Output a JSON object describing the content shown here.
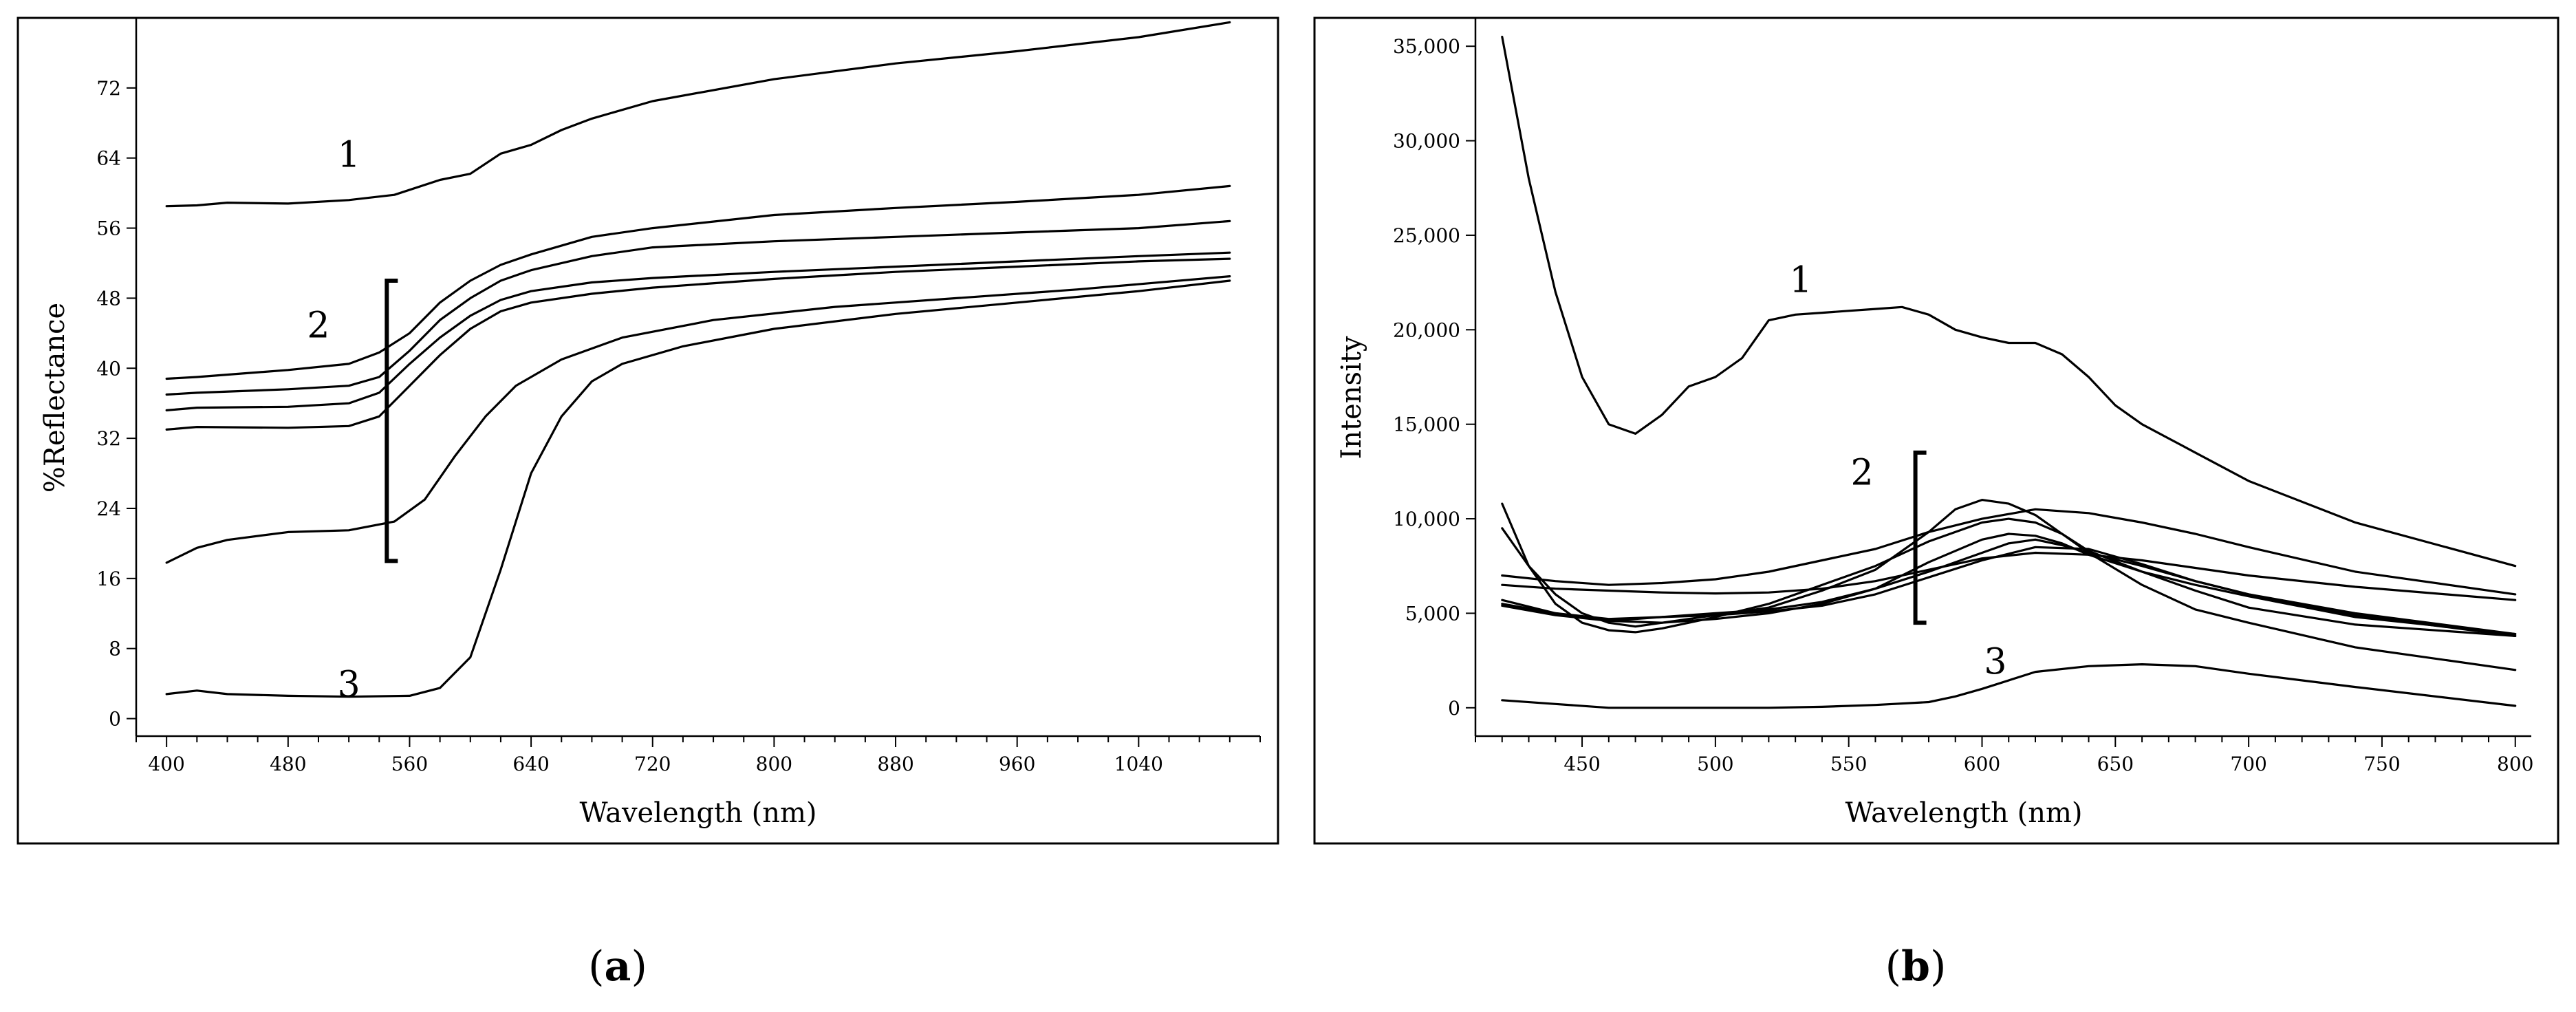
{
  "panels": {
    "a": {
      "label_paren_open": "(",
      "label_letter": "a",
      "label_paren_close": ")"
    },
    "b": {
      "label_paren_open": "(",
      "label_letter": "b",
      "label_paren_close": ")"
    }
  },
  "chart_data": [
    {
      "type": "line",
      "panel": "a",
      "xlabel": "Wavelength (nm)",
      "ylabel": "%Reflectance",
      "xlim": [
        380,
        1120
      ],
      "ylim": [
        -2,
        80
      ],
      "xticks": [
        400,
        480,
        560,
        640,
        720,
        800,
        880,
        960,
        1040
      ],
      "yticks": [
        0,
        8,
        16,
        24,
        32,
        40,
        48,
        56,
        64,
        72
      ],
      "ytick_labels": [
        "0",
        "8",
        "16",
        "24",
        "32",
        "40",
        "48",
        "56",
        "64",
        "72"
      ],
      "grid": false,
      "annotations": [
        {
          "text": "1",
          "x": 520,
          "y": 63
        },
        {
          "text": "2",
          "x": 500,
          "y": 43.5
        },
        {
          "text": "3",
          "x": 520,
          "y": 2.5
        }
      ],
      "bracket": {
        "x": 545,
        "y_low": 18,
        "y_high": 50
      },
      "series": [
        {
          "x": [
            400,
            420,
            440,
            480,
            520,
            550,
            580,
            600,
            620,
            640,
            660,
            680,
            720,
            800,
            880,
            960,
            1040,
            1100
          ],
          "y": [
            58.5,
            58.6,
            58.9,
            58.8,
            59.2,
            59.8,
            61.5,
            62.2,
            64.5,
            65.5,
            67.2,
            68.5,
            70.5,
            73,
            74.8,
            76.2,
            77.8,
            79.5
          ]
        },
        {
          "x": [
            400,
            420,
            480,
            520,
            540,
            560,
            580,
            600,
            620,
            640,
            680,
            720,
            800,
            880,
            960,
            1040,
            1100
          ],
          "y": [
            38.8,
            39.0,
            39.8,
            40.5,
            41.8,
            44,
            47.5,
            50,
            51.8,
            53,
            55,
            56,
            57.5,
            58.3,
            59,
            59.8,
            60.8
          ]
        },
        {
          "x": [
            400,
            420,
            480,
            520,
            540,
            560,
            580,
            600,
            620,
            640,
            680,
            720,
            800,
            880,
            960,
            1040,
            1100
          ],
          "y": [
            37.0,
            37.2,
            37.6,
            38.0,
            39,
            42,
            45.5,
            48,
            50,
            51.2,
            52.8,
            53.8,
            54.5,
            55,
            55.5,
            56,
            56.8
          ]
        },
        {
          "x": [
            400,
            420,
            480,
            520,
            540,
            560,
            580,
            600,
            620,
            640,
            680,
            720,
            800,
            880,
            960,
            1040,
            1100
          ],
          "y": [
            35.2,
            35.5,
            35.6,
            36.0,
            37.2,
            40.5,
            43.5,
            46,
            47.8,
            48.8,
            49.8,
            50.3,
            51,
            51.6,
            52.2,
            52.8,
            53.2
          ]
        },
        {
          "x": [
            400,
            420,
            480,
            520,
            540,
            560,
            580,
            600,
            620,
            640,
            680,
            720,
            800,
            880,
            960,
            1040,
            1100
          ],
          "y": [
            33.0,
            33.3,
            33.2,
            33.4,
            34.5,
            38,
            41.5,
            44.5,
            46.5,
            47.5,
            48.5,
            49.2,
            50.2,
            51,
            51.6,
            52.2,
            52.5
          ]
        },
        {
          "x": [
            400,
            420,
            440,
            480,
            520,
            550,
            570,
            590,
            610,
            630,
            660,
            700,
            760,
            840,
            920,
            1000,
            1100
          ],
          "y": [
            17.8,
            19.5,
            20.4,
            21.3,
            21.5,
            22.5,
            25,
            30,
            34.5,
            38,
            41,
            43.5,
            45.5,
            47,
            48,
            49,
            50.5
          ]
        },
        {
          "x": [
            400,
            420,
            440,
            480,
            520,
            560,
            580,
            600,
            620,
            640,
            660,
            680,
            700,
            740,
            800,
            880,
            960,
            1040,
            1100
          ],
          "y": [
            2.8,
            3.2,
            2.8,
            2.6,
            2.5,
            2.6,
            3.5,
            7,
            17,
            28,
            34.5,
            38.5,
            40.5,
            42.5,
            44.5,
            46.2,
            47.5,
            48.8,
            50
          ]
        }
      ]
    },
    {
      "type": "line",
      "panel": "b",
      "xlabel": "Wavelength (nm)",
      "ylabel": "Intensity",
      "xlim": [
        410,
        806
      ],
      "ylim": [
        -1500,
        36500
      ],
      "xticks": [
        450,
        500,
        550,
        600,
        650,
        700,
        750,
        800
      ],
      "yticks": [
        0,
        5000,
        10000,
        15000,
        20000,
        25000,
        30000,
        35000
      ],
      "ytick_labels": [
        "0",
        "5,000",
        "10,000",
        "15,000",
        "20,000",
        "25,000",
        "30,000",
        "35,000"
      ],
      "grid": false,
      "annotations": [
        {
          "text": "1",
          "x": 532,
          "y": 22000
        },
        {
          "text": "2",
          "x": 555,
          "y": 11800
        },
        {
          "text": "3",
          "x": 605,
          "y": 1800
        }
      ],
      "bracket": {
        "x": 575,
        "y_low": 4500,
        "y_high": 13500
      },
      "series": [
        {
          "x": [
            420,
            430,
            440,
            450,
            460,
            470,
            480,
            490,
            500,
            510,
            520,
            530,
            540,
            550,
            560,
            570,
            580,
            590,
            600,
            610,
            620,
            630,
            640,
            650,
            660,
            680,
            700,
            740,
            800
          ],
          "y": [
            35500,
            28000,
            22000,
            17500,
            15000,
            14500,
            15500,
            17000,
            17500,
            18500,
            20500,
            20800,
            20900,
            21000,
            21100,
            21200,
            20800,
            20000,
            19600,
            19300,
            19300,
            18700,
            17500,
            16000,
            15000,
            13500,
            12000,
            9800,
            7500
          ]
        },
        {
          "x": [
            420,
            440,
            460,
            480,
            500,
            520,
            540,
            560,
            580,
            600,
            620,
            640,
            660,
            680,
            700,
            740,
            800
          ],
          "y": [
            7000,
            6700,
            6500,
            6600,
            6800,
            7200,
            7800,
            8400,
            9300,
            10000,
            10500,
            10300,
            9800,
            9200,
            8500,
            7200,
            6000
          ]
        },
        {
          "x": [
            420,
            440,
            460,
            480,
            500,
            520,
            540,
            560,
            580,
            600,
            620,
            640,
            660,
            680,
            700,
            740,
            800
          ],
          "y": [
            6500,
            6300,
            6200,
            6100,
            6050,
            6100,
            6300,
            6700,
            7300,
            7900,
            8200,
            8100,
            7800,
            7400,
            7000,
            6400,
            5700
          ]
        },
        {
          "x": [
            420,
            430,
            440,
            450,
            460,
            470,
            480,
            500,
            520,
            540,
            560,
            580,
            590,
            600,
            610,
            620,
            630,
            640,
            660,
            680,
            700,
            740,
            800
          ],
          "y": [
            9500,
            7500,
            6000,
            5000,
            4500,
            4300,
            4500,
            4900,
            5300,
            6200,
            7300,
            9300,
            10500,
            11000,
            10800,
            10200,
            9200,
            8200,
            6500,
            5200,
            4500,
            3200,
            2000
          ]
        },
        {
          "x": [
            420,
            430,
            440,
            450,
            460,
            470,
            480,
            500,
            520,
            540,
            560,
            580,
            600,
            610,
            620,
            630,
            640,
            660,
            680,
            700,
            740,
            800
          ],
          "y": [
            10800,
            7500,
            5500,
            4500,
            4100,
            4000,
            4200,
            4800,
            5500,
            6500,
            7500,
            8800,
            9800,
            10000,
            9800,
            9200,
            8300,
            7200,
            6200,
            5300,
            4400,
            3800
          ]
        },
        {
          "x": [
            420,
            440,
            460,
            480,
            500,
            520,
            540,
            560,
            580,
            600,
            610,
            620,
            630,
            640,
            660,
            680,
            700,
            740,
            800
          ],
          "y": [
            5700,
            5000,
            4600,
            4500,
            4700,
            5000,
            5500,
            6300,
            7700,
            8900,
            9200,
            9100,
            8700,
            8100,
            7200,
            6500,
            5900,
            4800,
            3900
          ]
        },
        {
          "x": [
            420,
            440,
            460,
            480,
            500,
            520,
            540,
            560,
            580,
            600,
            610,
            620,
            630,
            640,
            660,
            680,
            700,
            740,
            800
          ],
          "y": [
            5500,
            5000,
            4700,
            4800,
            5000,
            5200,
            5600,
            6300,
            7200,
            8200,
            8700,
            8900,
            8600,
            8200,
            7500,
            6700,
            6000,
            5000,
            3900
          ]
        },
        {
          "x": [
            420,
            440,
            460,
            480,
            500,
            520,
            540,
            560,
            580,
            600,
            620,
            640,
            660,
            680,
            700,
            740,
            800
          ],
          "y": [
            5400,
            4900,
            4600,
            4800,
            4900,
            5100,
            5400,
            6000,
            6900,
            7800,
            8500,
            8400,
            7600,
            6700,
            6000,
            4900,
            3800
          ]
        },
        {
          "x": [
            420,
            440,
            460,
            480,
            500,
            520,
            540,
            560,
            580,
            590,
            600,
            620,
            640,
            660,
            680,
            700,
            740,
            800
          ],
          "y": [
            400,
            200,
            0,
            0,
            0,
            0,
            50,
            150,
            300,
            600,
            1000,
            1900,
            2200,
            2300,
            2200,
            1800,
            1100,
            100
          ]
        }
      ]
    }
  ]
}
